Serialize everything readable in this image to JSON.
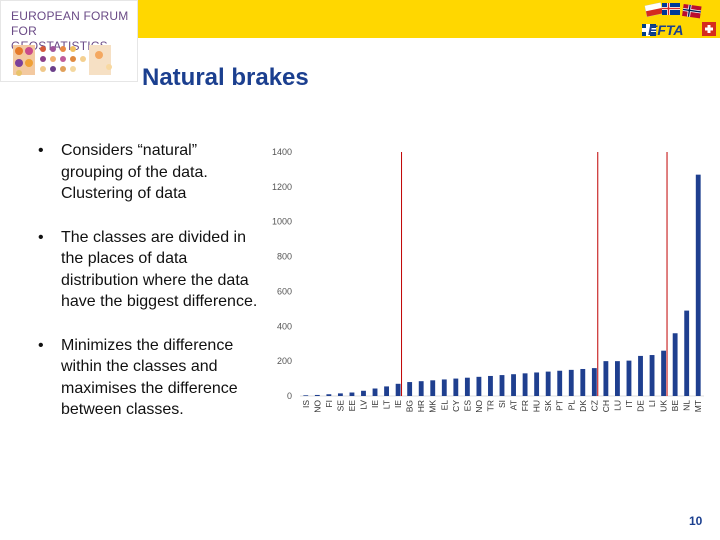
{
  "header": {
    "logo_line1": "EUROPEAN FORUM",
    "logo_line2": "FOR GEOSTATISTICS",
    "efta_label": "EFTA",
    "bar_color": "#ffd700"
  },
  "slide": {
    "title": "Natural brakes",
    "bullets": [
      "Considers “natural” grouping of the data. Clustering of data",
      "The classes are divided in the places of data distribution where the data have the biggest difference.",
      "Minimizes the difference within the classes and maximises the difference between classes."
    ],
    "page_number": "10",
    "title_color": "#1b3f8f"
  },
  "chart_data": {
    "type": "bar",
    "categories": [
      "IS",
      "NO",
      "FI",
      "SE",
      "EE",
      "LV",
      "IE",
      "LT",
      "IE",
      "BG",
      "HR",
      "MK",
      "EL",
      "CY",
      "ES",
      "NO",
      "TR",
      "SI",
      "AT",
      "FR",
      "HU",
      "SK",
      "PT",
      "PL",
      "DK",
      "CZ",
      "CH",
      "LU",
      "IT",
      "DE",
      "LI",
      "UK",
      "BE",
      "NL",
      "MT"
    ],
    "values": [
      4,
      6,
      10,
      15,
      20,
      30,
      43,
      55,
      70,
      80,
      85,
      90,
      95,
      100,
      105,
      110,
      115,
      120,
      125,
      130,
      135,
      140,
      145,
      150,
      155,
      160,
      200,
      200,
      203,
      230,
      235,
      260,
      360,
      490,
      1270
    ],
    "yticks": [
      "0",
      "200",
      "400",
      "600",
      "800",
      "1000",
      "1200",
      "1400"
    ],
    "ylim": [
      0,
      1400
    ],
    "class_breaks_after_index": [
      8,
      25,
      31
    ],
    "bar_color": "#1f3f8f",
    "break_color": "#c00000"
  }
}
